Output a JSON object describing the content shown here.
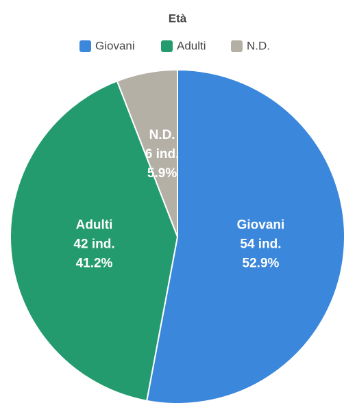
{
  "chart_data": {
    "type": "pie",
    "title": "Età",
    "categories": [
      "Giovani",
      "Adulti",
      "N.D."
    ],
    "values": [
      54,
      42,
      6
    ],
    "value_labels": [
      "54 ind.",
      "42 ind.",
      "6 ind."
    ],
    "percentages": [
      52.9,
      41.2,
      5.9
    ],
    "percentage_labels": [
      "52.9%",
      "41.2%",
      "5.9%"
    ],
    "colors": [
      "#3a87dc",
      "#239b6e",
      "#b5b0a6"
    ],
    "legend": "top"
  }
}
